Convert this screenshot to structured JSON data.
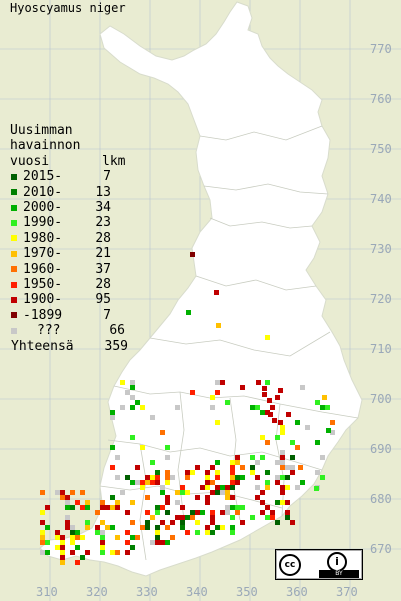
{
  "title": "Hyoscyamus niger",
  "legend": {
    "heading_line1": "Uusimman",
    "heading_line2": "havainnon",
    "col_year": "vuosi",
    "col_count": "lkm",
    "rows": [
      {
        "label": "2015-",
        "count": "7",
        "color": "#006000"
      },
      {
        "label": "2010-",
        "count": "13",
        "color": "#008000"
      },
      {
        "label": "2000-",
        "count": "34",
        "color": "#00b000"
      },
      {
        "label": "1990-",
        "count": "23",
        "color": "#30f020"
      },
      {
        "label": "1980-",
        "count": "28",
        "color": "#ffff00"
      },
      {
        "label": "1970-",
        "count": "21",
        "color": "#ffc000"
      },
      {
        "label": "1960-",
        "count": "37",
        "color": "#ff7000"
      },
      {
        "label": "1950-",
        "count": "28",
        "color": "#ff2000"
      },
      {
        "label": "1900-",
        "count": "95",
        "color": "#c00000"
      },
      {
        "label": "-1899",
        "count": "7",
        "color": "#800000"
      },
      {
        "label": "???",
        "count": "66",
        "color": "#c8c8c8"
      }
    ],
    "total_label": "Yhteensä",
    "total_count": "359"
  },
  "y_axis_labels": [
    "770",
    "760",
    "750",
    "740",
    "730",
    "720",
    "710",
    "700",
    "690",
    "680",
    "670"
  ],
  "x_axis_labels": [
    "310",
    "320",
    "330",
    "340",
    "350",
    "360",
    "370"
  ],
  "license": {
    "cc": "cc",
    "by_icon": "i",
    "by_text": "BY"
  },
  "colors": {
    "background": "#e9ecd2",
    "land": "#ffffff",
    "grid": "#b8c4d0",
    "axis_label": "#9aa8b8"
  }
}
